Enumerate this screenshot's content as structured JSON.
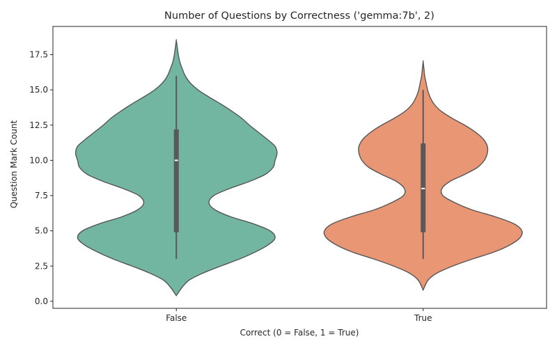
{
  "chart_data": {
    "type": "violin",
    "title": "Number of Questions by Correctness ('gemma:7b', 2)",
    "xlabel": "Correct (0 = False, 1 = True)",
    "ylabel": "Question Mark Count",
    "categories": [
      "False",
      "True"
    ],
    "ylim": [
      -0.5,
      19.5
    ],
    "yticks": [
      "0.0",
      "2.5",
      "5.0",
      "7.5",
      "10.0",
      "12.5",
      "15.0",
      "17.5"
    ],
    "grid": false,
    "colors": {
      "False": "#72b6a1",
      "True": "#e99675",
      "outline": "#555555",
      "inner": "#595959",
      "median": "#ffffff"
    },
    "violins": [
      {
        "category": "False",
        "box": {
          "whisker_low": 3,
          "q1": 4.9,
          "median": 10,
          "q3": 12.2,
          "whisker_high": 16
        },
        "density_profile": [
          [
            0.4,
            0.0
          ],
          [
            1.0,
            0.06
          ],
          [
            1.5,
            0.13
          ],
          [
            2.0,
            0.27
          ],
          [
            2.5,
            0.45
          ],
          [
            3.0,
            0.64
          ],
          [
            3.5,
            0.8
          ],
          [
            4.0,
            0.93
          ],
          [
            4.5,
            1.0
          ],
          [
            5.0,
            0.95
          ],
          [
            5.5,
            0.78
          ],
          [
            6.0,
            0.55
          ],
          [
            6.5,
            0.39
          ],
          [
            7.0,
            0.33
          ],
          [
            7.5,
            0.38
          ],
          [
            8.0,
            0.54
          ],
          [
            8.5,
            0.74
          ],
          [
            9.0,
            0.9
          ],
          [
            9.5,
            0.98
          ],
          [
            10.0,
            1.0
          ],
          [
            10.5,
            1.02
          ],
          [
            11.0,
            1.0
          ],
          [
            11.5,
            0.92
          ],
          [
            12.0,
            0.83
          ],
          [
            12.5,
            0.74
          ],
          [
            13.0,
            0.66
          ],
          [
            13.5,
            0.56
          ],
          [
            14.0,
            0.45
          ],
          [
            14.5,
            0.33
          ],
          [
            15.0,
            0.22
          ],
          [
            15.5,
            0.14
          ],
          [
            16.0,
            0.09
          ],
          [
            16.5,
            0.06
          ],
          [
            17.0,
            0.035
          ],
          [
            17.5,
            0.02
          ],
          [
            18.0,
            0.01
          ],
          [
            18.5,
            0.0
          ]
        ]
      },
      {
        "category": "True",
        "box": {
          "whisker_low": 3,
          "q1": 4.9,
          "median": 8,
          "q3": 11.2,
          "whisker_high": 15
        },
        "density_profile": [
          [
            0.8,
            0.0
          ],
          [
            1.5,
            0.05
          ],
          [
            2.0,
            0.14
          ],
          [
            2.5,
            0.3
          ],
          [
            3.0,
            0.5
          ],
          [
            3.5,
            0.72
          ],
          [
            4.0,
            0.88
          ],
          [
            4.5,
            0.98
          ],
          [
            5.0,
            1.0
          ],
          [
            5.5,
            0.92
          ],
          [
            6.0,
            0.73
          ],
          [
            6.5,
            0.49
          ],
          [
            7.0,
            0.32
          ],
          [
            7.5,
            0.2
          ],
          [
            8.0,
            0.19
          ],
          [
            8.5,
            0.27
          ],
          [
            9.0,
            0.42
          ],
          [
            9.5,
            0.55
          ],
          [
            10.0,
            0.62
          ],
          [
            10.5,
            0.65
          ],
          [
            11.0,
            0.65
          ],
          [
            11.5,
            0.61
          ],
          [
            12.0,
            0.53
          ],
          [
            12.5,
            0.42
          ],
          [
            13.0,
            0.29
          ],
          [
            13.5,
            0.18
          ],
          [
            14.0,
            0.11
          ],
          [
            14.5,
            0.07
          ],
          [
            15.0,
            0.045
          ],
          [
            15.5,
            0.03
          ],
          [
            16.0,
            0.015
          ],
          [
            16.5,
            0.008
          ],
          [
            17.0,
            0.0
          ]
        ]
      }
    ]
  }
}
